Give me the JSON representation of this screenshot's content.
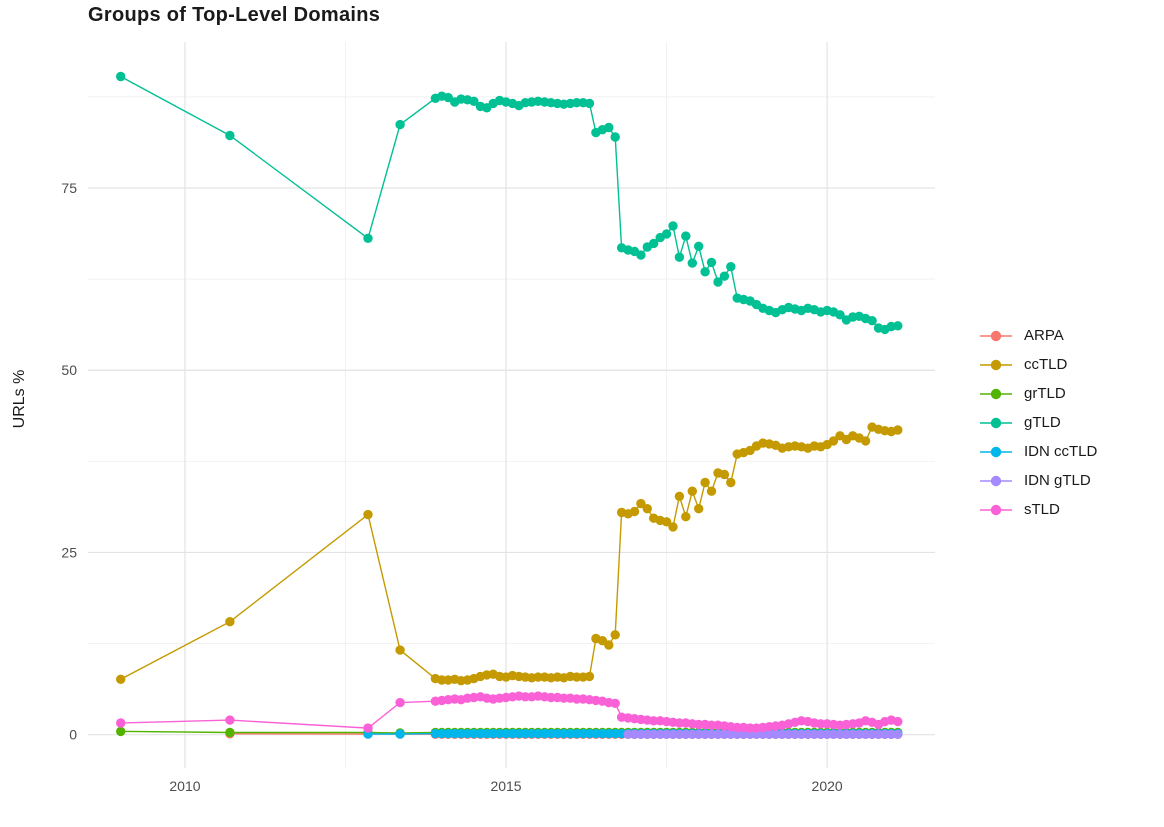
{
  "chart_data": {
    "type": "line",
    "title": "Groups of Top-Level Domains",
    "ylabel": "URLs %",
    "xlabel": "",
    "x": [
      2009,
      2010.7,
      2012.85,
      2013.35,
      2013.9,
      2014,
      2014.1,
      2014.2,
      2014.3,
      2014.4,
      2014.5,
      2014.6,
      2014.7,
      2014.8,
      2014.9,
      2015,
      2015.1,
      2015.2,
      2015.3,
      2015.4,
      2015.5,
      2015.6,
      2015.7,
      2015.8,
      2015.9,
      2016,
      2016.1,
      2016.2,
      2016.3,
      2016.4,
      2016.5,
      2016.6,
      2016.7,
      2016.8,
      2016.9,
      2017,
      2017.1,
      2017.2,
      2017.3,
      2017.4,
      2017.5,
      2017.6,
      2017.7,
      2017.8,
      2017.9,
      2018,
      2018.1,
      2018.2,
      2018.3,
      2018.4,
      2018.5,
      2018.6,
      2018.7,
      2018.8,
      2018.9,
      2019,
      2019.1,
      2019.2,
      2019.3,
      2019.4,
      2019.5,
      2019.6,
      2019.7,
      2019.8,
      2019.9,
      2020,
      2020.1,
      2020.2,
      2020.3,
      2020.4,
      2020.5,
      2020.6,
      2020.7,
      2020.8,
      2020.9,
      2021,
      2021.1
    ],
    "series": [
      {
        "id": "arpa",
        "name": "ARPA",
        "color": "#F8766D",
        "values": [
          null,
          0.12,
          0.1,
          0.08,
          0.05,
          0.05,
          0.05,
          0.05,
          0.05,
          0.05,
          0.05,
          0.05,
          0.05,
          0.05,
          0.05,
          0.05,
          0.05,
          0.05,
          0.05,
          0.05,
          0.05,
          0.05,
          0.05,
          0.05,
          0.05,
          0.05,
          0.05,
          0.05,
          0.05,
          0.05,
          0.05,
          0.05,
          0.05,
          0.05,
          0.05,
          0.05,
          0.05,
          0.05,
          0.05,
          0.05,
          0.05,
          0.05,
          0.05,
          0.05,
          0.05,
          0.05,
          0.05,
          0.05,
          0.05,
          0.05,
          0.05,
          0.05,
          0.05,
          0.05,
          0.05,
          0.05,
          0.05,
          0.05,
          0.05,
          0.05,
          0.05,
          0.05,
          0.05,
          0.05,
          0.05,
          0.05,
          0.05,
          0.05,
          0.05,
          0.05,
          0.05,
          0.05,
          0.05,
          0.05,
          0.05,
          0.05,
          0.05
        ]
      },
      {
        "id": "cctld",
        "name": "ccTLD",
        "color": "#C49A00",
        "values": [
          7.6,
          15.5,
          30.2,
          11.6,
          7.7,
          7.5,
          7.5,
          7.6,
          7.4,
          7.5,
          7.7,
          8.0,
          8.2,
          8.3,
          8.0,
          7.9,
          8.1,
          8.0,
          7.9,
          7.8,
          7.9,
          7.9,
          7.8,
          7.9,
          7.8,
          8.0,
          7.9,
          7.9,
          8.0,
          13.2,
          12.9,
          12.3,
          13.7,
          30.5,
          30.3,
          30.6,
          31.7,
          31.0,
          29.7,
          29.4,
          29.2,
          28.5,
          32.7,
          29.9,
          33.4,
          31.0,
          34.6,
          33.4,
          35.9,
          35.7,
          34.6,
          38.5,
          38.7,
          39.0,
          39.6,
          40.0,
          39.9,
          39.7,
          39.3,
          39.5,
          39.6,
          39.5,
          39.3,
          39.6,
          39.5,
          39.8,
          40.3,
          41.0,
          40.5,
          41.0,
          40.7,
          40.3,
          42.2,
          41.9,
          41.7,
          41.6,
          41.8
        ]
      },
      {
        "id": "grtld",
        "name": "grTLD",
        "color": "#53B400",
        "values": [
          0.45,
          0.3,
          0.3,
          0.25,
          0.3,
          0.3,
          0.3,
          0.3,
          0.3,
          0.3,
          0.3,
          0.3,
          0.3,
          0.3,
          0.3,
          0.3,
          0.3,
          0.3,
          0.3,
          0.3,
          0.3,
          0.3,
          0.3,
          0.3,
          0.3,
          0.3,
          0.3,
          0.3,
          0.3,
          0.3,
          0.3,
          0.3,
          0.3,
          0.3,
          0.3,
          0.3,
          0.3,
          0.3,
          0.3,
          0.3,
          0.3,
          0.3,
          0.3,
          0.3,
          0.3,
          0.3,
          0.3,
          0.3,
          0.3,
          0.3,
          0.3,
          0.3,
          0.3,
          0.3,
          0.3,
          0.3,
          0.3,
          0.3,
          0.3,
          0.3,
          0.3,
          0.3,
          0.3,
          0.3,
          0.3,
          0.3,
          0.3,
          0.3,
          0.3,
          0.3,
          0.3,
          0.3,
          0.3,
          0.3,
          0.3,
          0.3,
          0.3
        ]
      },
      {
        "id": "gtld",
        "name": "gTLD",
        "color": "#00C094",
        "values": [
          90.3,
          82.2,
          68.1,
          83.7,
          87.3,
          87.6,
          87.4,
          86.8,
          87.2,
          87.1,
          86.9,
          86.2,
          86.0,
          86.6,
          87.0,
          86.8,
          86.6,
          86.3,
          86.7,
          86.8,
          86.9,
          86.8,
          86.7,
          86.6,
          86.5,
          86.6,
          86.7,
          86.7,
          86.6,
          82.6,
          83.0,
          83.3,
          82.0,
          66.8,
          66.5,
          66.3,
          65.8,
          66.9,
          67.4,
          68.2,
          68.7,
          69.8,
          65.5,
          68.4,
          64.7,
          67.0,
          63.5,
          64.8,
          62.1,
          62.9,
          64.2,
          59.9,
          59.7,
          59.5,
          59.0,
          58.5,
          58.2,
          57.9,
          58.3,
          58.6,
          58.4,
          58.2,
          58.5,
          58.3,
          58.0,
          58.2,
          58.0,
          57.6,
          56.9,
          57.3,
          57.4,
          57.1,
          56.8,
          55.8,
          55.6,
          56.0,
          56.1
        ]
      },
      {
        "id": "idn-cctld",
        "name": "IDN ccTLD",
        "color": "#00B6EB",
        "values": [
          null,
          null,
          0.1,
          0.1,
          0.15,
          0.15,
          0.15,
          0.15,
          0.15,
          0.15,
          0.15,
          0.15,
          0.15,
          0.15,
          0.15,
          0.15,
          0.15,
          0.15,
          0.15,
          0.15,
          0.15,
          0.15,
          0.15,
          0.15,
          0.15,
          0.15,
          0.15,
          0.15,
          0.15,
          0.15,
          0.15,
          0.15,
          0.15,
          0.15,
          0.15,
          0.15,
          0.15,
          0.15,
          0.15,
          0.15,
          0.15,
          0.15,
          0.15,
          0.15,
          0.15,
          0.15,
          0.15,
          0.15,
          0.15,
          0.15,
          0.15,
          0.15,
          0.15,
          0.15,
          0.15,
          0.15,
          0.15,
          0.15,
          0.15,
          0.15,
          0.15,
          0.15,
          0.15,
          0.15,
          0.15,
          0.15,
          0.15,
          0.15,
          0.15,
          0.15,
          0.15,
          0.15,
          0.15,
          0.15,
          0.15,
          0.15,
          0.15
        ]
      },
      {
        "id": "idn-gtld",
        "name": "IDN gTLD",
        "color": "#A58AFF",
        "values": [
          null,
          null,
          null,
          null,
          null,
          null,
          null,
          null,
          null,
          null,
          null,
          null,
          null,
          null,
          null,
          null,
          null,
          null,
          null,
          null,
          null,
          null,
          null,
          null,
          null,
          null,
          null,
          null,
          null,
          null,
          null,
          null,
          null,
          null,
          0.05,
          0.05,
          0.05,
          0.05,
          0.05,
          0.05,
          0.05,
          0.05,
          0.05,
          0.05,
          0.05,
          0.05,
          0.05,
          0.05,
          0.05,
          0.05,
          0.05,
          0.05,
          0.05,
          0.05,
          0.05,
          0.05,
          0.05,
          0.05,
          0.05,
          0.05,
          0.05,
          0.05,
          0.05,
          0.05,
          0.05,
          0.05,
          0.05,
          0.05,
          0.05,
          0.05,
          0.05,
          0.05,
          0.05,
          0.05,
          0.05,
          0.05,
          0.05
        ]
      },
      {
        "id": "stld",
        "name": "sTLD",
        "color": "#FB61D7",
        "values": [
          1.6,
          2.0,
          0.9,
          4.4,
          4.6,
          4.7,
          4.8,
          4.9,
          4.8,
          5.0,
          5.1,
          5.2,
          5.0,
          4.9,
          5.0,
          5.1,
          5.2,
          5.3,
          5.2,
          5.2,
          5.3,
          5.2,
          5.1,
          5.1,
          5.0,
          5.0,
          4.9,
          4.9,
          4.8,
          4.7,
          4.6,
          4.4,
          4.3,
          2.4,
          2.3,
          2.2,
          2.1,
          2.0,
          1.9,
          1.9,
          1.8,
          1.7,
          1.6,
          1.6,
          1.5,
          1.4,
          1.4,
          1.3,
          1.3,
          1.2,
          1.1,
          1.0,
          1.0,
          0.9,
          0.9,
          1.0,
          1.1,
          1.2,
          1.3,
          1.5,
          1.7,
          1.9,
          1.8,
          1.6,
          1.5,
          1.5,
          1.4,
          1.3,
          1.4,
          1.5,
          1.6,
          1.9,
          1.7,
          1.4,
          1.8,
          2.0,
          1.8
        ]
      }
    ],
    "axes": {
      "xlim": [
        2008.49,
        2021.68
      ],
      "ylim": [
        -4.57,
        95.03
      ],
      "xticks": [
        2010,
        2015,
        2020
      ],
      "xtick_labels": [
        "2010",
        "2015",
        "2020"
      ],
      "yticks": [
        0,
        25,
        50,
        75
      ],
      "ytick_labels": [
        "0",
        "25",
        "50",
        "75"
      ],
      "xminor": [
        2012.5,
        2017.5
      ],
      "yminor": [
        12.5,
        37.5,
        62.5,
        87.5
      ],
      "grid": "major+minor",
      "legend_position": "right"
    },
    "styles": {
      "background": "#ffffff",
      "grid_major": "#e3e3e3",
      "grid_minor": "#f0f0f0",
      "tick_label_color": "#4d4d4d",
      "title_color": "#1a1a1a",
      "label_color": "#1a1a1a"
    }
  }
}
